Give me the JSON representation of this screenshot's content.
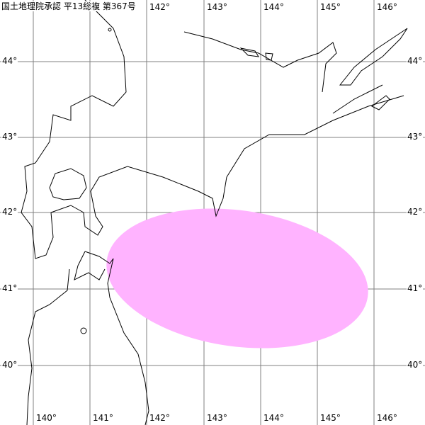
{
  "approval_text": "国土地理院承認 平13総複 第367号",
  "longitudes": [
    "140°",
    "141°",
    "142°",
    "143°",
    "144°",
    "145°",
    "146°"
  ],
  "latitudes": [
    "44°",
    "43°",
    "42°",
    "41°",
    "40°"
  ],
  "colors": {
    "area_fill": "#ffb3ff",
    "grid": "#808080",
    "coast": "#000000"
  },
  "highlight_area": {
    "shape": "ellipse",
    "center_lon": 143.6,
    "center_lat": 41.1
  }
}
